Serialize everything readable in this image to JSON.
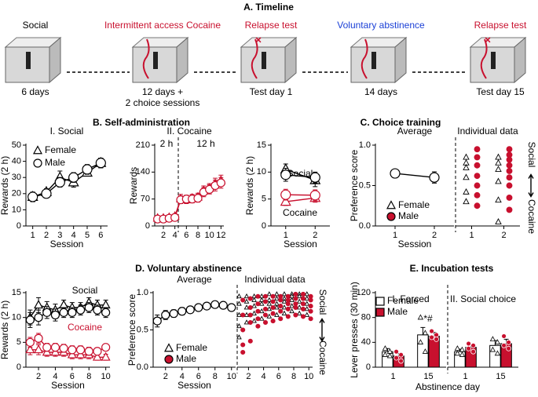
{
  "timeline": {
    "title": "A. Timeline",
    "stages": [
      {
        "label": "Social",
        "color": "#000000",
        "duration": [
          "6 days"
        ]
      },
      {
        "label": "Intermittent access Cocaine",
        "color": "#c8102e",
        "duration": [
          "12 days +",
          "2 choice sessions"
        ]
      },
      {
        "label": "Relapse test",
        "color": "#c8102e",
        "duration": [
          "Test day 1"
        ]
      },
      {
        "label": "Voluntary abstinence",
        "color": "#1a3fd6",
        "duration": [
          "14 days"
        ]
      },
      {
        "label": "Relapse test",
        "color": "#c8102e",
        "duration": [
          "Test day 15"
        ]
      }
    ]
  },
  "panels": [
    {
      "title": "B. Self-administration"
    },
    {
      "title": "C. Choice training"
    },
    {
      "title": "D. Voluntary abstinence"
    },
    {
      "title": "E. Incubation tests",
      "xlabel": "Abstinence day"
    }
  ],
  "chart_data": [
    {
      "type": "line",
      "subtitle": "I. Social",
      "ylabel": "Rewards (2 h)",
      "xlabel": "Session",
      "x": [
        1,
        2,
        3,
        4,
        5,
        6
      ],
      "xlim": [
        0.5,
        6.5
      ],
      "xticks": [
        1,
        2,
        3,
        4,
        5,
        6
      ],
      "ylim": [
        0,
        50
      ],
      "yticks": [
        0,
        10,
        20,
        30,
        40,
        50
      ],
      "legend": [
        {
          "name": "Female",
          "marker": "triangle",
          "fill": "#ffffff"
        },
        {
          "name": "Male",
          "marker": "circle",
          "fill": "#ffffff"
        }
      ],
      "series": [
        {
          "marker": "triangle",
          "color": "#000000",
          "fill": "#ffffff",
          "values": [
            18,
            21,
            30,
            27,
            33,
            39
          ],
          "errors": [
            2,
            2,
            4,
            3,
            2,
            3
          ]
        },
        {
          "marker": "circle",
          "color": "#000000",
          "fill": "#ffffff",
          "values": [
            18,
            20,
            27,
            30,
            35,
            39
          ],
          "errors": [
            3,
            2,
            3,
            3,
            3,
            3
          ]
        }
      ]
    },
    {
      "type": "line",
      "subtitle": "II. Cocaine",
      "ylabel": "Rewards",
      "x": [
        1,
        2,
        3,
        4,
        5,
        6,
        7,
        8,
        9,
        10,
        11,
        12
      ],
      "xlim": [
        0.5,
        12.5
      ],
      "xticks": [
        2,
        4,
        6,
        8,
        10,
        12
      ],
      "ylim": [
        0,
        210
      ],
      "yticks": [
        0,
        70,
        140,
        210
      ],
      "annotations": [
        {
          "text": "2 h",
          "color": "#000000"
        },
        {
          "text": "12 h",
          "color": "#000000"
        }
      ],
      "series": [
        {
          "marker": "triangle",
          "color": "#c8102e",
          "fill": "#ffffff",
          "values": [
            20,
            20,
            22,
            25,
            70,
            68,
            72,
            75,
            92,
            98,
            110,
            118
          ],
          "errors": [
            6,
            6,
            6,
            6,
            12,
            10,
            10,
            10,
            12,
            12,
            14,
            14
          ]
        },
        {
          "marker": "circle",
          "color": "#c8102e",
          "fill": "#ffffff",
          "values": [
            18,
            18,
            20,
            22,
            68,
            70,
            70,
            72,
            88,
            95,
            105,
            112
          ],
          "errors": [
            6,
            6,
            6,
            6,
            10,
            10,
            10,
            10,
            12,
            12,
            14,
            14
          ]
        }
      ]
    },
    {
      "type": "line",
      "ylabel": "Rewards (2 h)",
      "xlabel": "Session",
      "x": [
        1,
        2
      ],
      "xlim": [
        0.5,
        2.5
      ],
      "xticks": [
        1,
        2
      ],
      "ylim": [
        0,
        15
      ],
      "yticks": [
        0,
        5,
        10,
        15
      ],
      "annotations": [
        {
          "text": "Social",
          "color": "#000000"
        },
        {
          "text": "Cocaine",
          "color": "#000000"
        }
      ],
      "series": [
        {
          "marker": "triangle",
          "color": "#000000",
          "fill": "#ffffff",
          "values": [
            10.5,
            8.5
          ],
          "errors": [
            1,
            1.2
          ]
        },
        {
          "marker": "circle",
          "color": "#000000",
          "fill": "#ffffff",
          "values": [
            9.5,
            9
          ],
          "errors": [
            1.2,
            1
          ]
        },
        {
          "marker": "triangle",
          "color": "#c8102e",
          "fill": "#ffffff",
          "values": [
            4.5,
            5.2
          ],
          "errors": [
            0.7,
            0.8
          ]
        },
        {
          "marker": "circle",
          "color": "#c8102e",
          "fill": "#ffffff",
          "values": [
            5.8,
            5.7
          ],
          "errors": [
            1,
            1
          ]
        }
      ]
    },
    {
      "type": "line",
      "subtitle": "Average",
      "ylabel": "Preference score",
      "xlabel": "Session",
      "x": [
        1,
        2
      ],
      "xlim": [
        0.5,
        2.5
      ],
      "xticks": [
        1,
        2
      ],
      "ylim": [
        0,
        1
      ],
      "yticks": [
        {
          "value": 0,
          "label": "0.0"
        },
        0.5,
        {
          "value": 1,
          "label": "1.0"
        }
      ],
      "legend": [
        {
          "name": "Female",
          "marker": "triangle",
          "fill": "#ffffff"
        },
        {
          "name": "Male",
          "marker": "circle",
          "fill": "#c8102e"
        }
      ],
      "series": [
        {
          "marker": "circle",
          "color": "#000000",
          "fill": "#ffffff",
          "values": [
            0.65,
            0.6
          ],
          "errors": [
            0.02,
            0.07
          ]
        }
      ]
    },
    {
      "type": "dot",
      "subtitle": "Individual data",
      "x": [
        1,
        2
      ],
      "xlim": [
        0.5,
        2.5
      ],
      "xticks": [
        1,
        2
      ],
      "ylim": [
        0,
        1
      ],
      "side_labels": [
        "Social",
        "Cocaine"
      ],
      "series": [
        {
          "marker": "triangle",
          "color": "#000000",
          "fill": "#ffffff",
          "values": [
            [
              0.85,
              0.78,
              0.72,
              0.6,
              0.42,
              0.3
            ],
            [
              0.85,
              0.78,
              0.7,
              0.55,
              0.32,
              0.05
            ]
          ]
        },
        {
          "marker": "circle",
          "color": "#c8102e",
          "fill": "#c8102e",
          "values": [
            [
              0.95,
              0.85,
              0.75,
              0.62,
              0.5,
              0.38,
              0.25
            ],
            [
              0.95,
              0.88,
              0.82,
              0.75,
              0.68,
              0.6,
              0.5,
              0.35,
              0.2
            ]
          ]
        }
      ]
    },
    {
      "type": "line",
      "ylabel": "Rewards (2 h)",
      "xlabel": "Session",
      "x": [
        1,
        2,
        3,
        4,
        5,
        6,
        7,
        8,
        9,
        10
      ],
      "xlim": [
        0.5,
        10.5
      ],
      "xticks": [
        2,
        4,
        6,
        8,
        10
      ],
      "ylim": [
        0,
        15
      ],
      "yticks": [
        0,
        5,
        10,
        15
      ],
      "annotations": [
        {
          "text": "Social",
          "color": "#000000"
        },
        {
          "text": "Cocaine",
          "color": "#c8102e"
        }
      ],
      "series": [
        {
          "marker": "triangle",
          "color": "#000000",
          "fill": "#ffffff",
          "values": [
            10,
            12.5,
            12,
            11.5,
            12.5,
            12,
            12,
            13,
            12.5,
            12.5
          ],
          "errors": [
            1.5,
            1.5,
            1.2,
            1.2,
            1,
            1,
            1,
            1,
            1,
            1
          ]
        },
        {
          "marker": "circle",
          "color": "#000000",
          "fill": "#ffffff",
          "values": [
            9.5,
            10,
            11,
            10.5,
            11,
            11,
            11.5,
            12,
            11.5,
            11
          ],
          "errors": [
            1.5,
            1.5,
            1.2,
            1.2,
            1,
            1,
            1,
            1,
            1,
            1
          ]
        },
        {
          "marker": "triangle",
          "color": "#c8102e",
          "fill": "#ffffff",
          "values": [
            3.5,
            3.5,
            3,
            3,
            3,
            2.5,
            2.5,
            2.5,
            2,
            2
          ],
          "errors": [
            1,
            1,
            0.8,
            0.8,
            0.8,
            0.8,
            0.8,
            0.8,
            0.6,
            0.6
          ]
        },
        {
          "marker": "circle",
          "color": "#c8102e",
          "fill": "#ffffff",
          "values": [
            5,
            5.8,
            4,
            4,
            3.8,
            3.5,
            3.5,
            3.2,
            3.2,
            4
          ],
          "errors": [
            1,
            1,
            0.8,
            0.8,
            0.8,
            0.8,
            0.8,
            0.8,
            0.6,
            0.6
          ]
        }
      ]
    },
    {
      "type": "line",
      "subtitle": "Average",
      "ylabel": "Preference score",
      "xlabel": "Session",
      "x": [
        1,
        2,
        3,
        4,
        5,
        6,
        7,
        8,
        9,
        10
      ],
      "xlim": [
        0.5,
        10.5
      ],
      "xticks": [
        2,
        4,
        6,
        8,
        10
      ],
      "ylim": [
        0,
        1
      ],
      "yticks": [
        {
          "value": 0,
          "label": "0.0"
        },
        0.5,
        {
          "value": 1,
          "label": "1.0"
        }
      ],
      "legend": [
        {
          "name": "Female",
          "marker": "triangle",
          "fill": "#ffffff"
        },
        {
          "name": "Male",
          "marker": "circle",
          "fill": "#c8102e"
        }
      ],
      "series": [
        {
          "marker": "circle",
          "color": "#000000",
          "fill": "#ffffff",
          "values": [
            0.62,
            0.7,
            0.72,
            0.75,
            0.77,
            0.8,
            0.82,
            0.84,
            0.83,
            0.8
          ],
          "errors": [
            0.08,
            0.06,
            0.05,
            0.05,
            0.04,
            0.04,
            0.04,
            0.03,
            0.03,
            0.03
          ]
        }
      ]
    },
    {
      "type": "dot",
      "subtitle": "Individual data",
      "x": [
        1,
        2,
        3,
        4,
        5,
        6,
        7,
        8,
        9,
        10
      ],
      "xlim": [
        0.5,
        10.5
      ],
      "xticks": [
        2,
        4,
        6,
        8,
        10
      ],
      "ylim": [
        0,
        1
      ],
      "side_labels": [
        "Social",
        "Cocaine"
      ],
      "series": [
        {
          "marker": "triangle",
          "color": "#000000",
          "fill": "#ffffff",
          "values": [
            [
              0.95,
              0.85,
              0.7,
              0.55,
              0.4
            ],
            [
              0.95,
              0.88,
              0.8,
              0.7,
              0.6
            ],
            [
              0.95,
              0.9,
              0.82,
              0.72,
              0.62
            ],
            [
              0.95,
              0.9,
              0.85,
              0.75,
              0.65
            ],
            [
              0.98,
              0.9,
              0.85,
              0.78,
              0.68
            ],
            [
              0.98,
              0.92,
              0.85,
              0.8,
              0.7
            ],
            [
              0.98,
              0.92,
              0.88,
              0.8,
              0.72
            ],
            [
              0.98,
              0.95,
              0.9,
              0.82,
              0.75
            ],
            [
              0.98,
              0.95,
              0.88,
              0.8,
              0.72
            ],
            [
              0.98,
              0.92,
              0.85,
              0.78,
              0.7
            ]
          ]
        },
        {
          "marker": "circle",
          "color": "#c8102e",
          "fill": "#c8102e",
          "values": [
            [
              0.9,
              0.7,
              0.5,
              0.3,
              0.2
            ],
            [
              0.92,
              0.8,
              0.7,
              0.6,
              0.35
            ],
            [
              0.95,
              0.85,
              0.75,
              0.65,
              0.55
            ],
            [
              0.95,
              0.88,
              0.78,
              0.7,
              0.6
            ],
            [
              0.95,
              0.88,
              0.8,
              0.72,
              0.62
            ],
            [
              0.95,
              0.9,
              0.82,
              0.75,
              0.65
            ],
            [
              0.95,
              0.9,
              0.85,
              0.78,
              0.68
            ],
            [
              0.98,
              0.92,
              0.85,
              0.8,
              0.7
            ],
            [
              0.98,
              0.92,
              0.85,
              0.78,
              0.68
            ],
            [
              0.95,
              0.9,
              0.82,
              0.75,
              0.65
            ]
          ]
        }
      ]
    },
    {
      "type": "bar",
      "subtitle": "I. Forced",
      "ylabel": "Lever presses (30 min)",
      "categories": [
        "1",
        "15"
      ],
      "ylim": [
        0,
        120
      ],
      "yticks": [
        0,
        40,
        80,
        120
      ],
      "legend": [
        {
          "name": "Female",
          "marker": "square",
          "fill": "#ffffff"
        },
        {
          "name": "Male",
          "marker": "square",
          "fill": "#c8102e"
        }
      ],
      "annotations": [
        {
          "text": "*#",
          "color": "#000000"
        }
      ],
      "series": [
        {
          "marker": "triangle",
          "color": "#000000",
          "fill": "#ffffff",
          "values": [
            25,
            52
          ],
          "errors": [
            5,
            12
          ],
          "points": [
            [
              30,
              25,
              20,
              18
            ],
            [
              80,
              55,
              40,
              25
            ]
          ]
        },
        {
          "marker": "circle",
          "color": "#000000",
          "fill": "#c8102e",
          "values": [
            18,
            50
          ],
          "errors": [
            4,
            6
          ],
          "points": [
            [
              25,
              20,
              15,
              10
            ],
            [
              58,
              52,
              48,
              45
            ]
          ]
        }
      ]
    },
    {
      "type": "bar",
      "subtitle": "II. Social choice",
      "categories": [
        "1",
        "15"
      ],
      "ylim": [
        0,
        120
      ],
      "series": [
        {
          "marker": "triangle",
          "color": "#000000",
          "fill": "#ffffff",
          "values": [
            25,
            35
          ],
          "errors": [
            4,
            8
          ],
          "points": [
            [
              30,
              28,
              22,
              20
            ],
            [
              45,
              40,
              28,
              22
            ]
          ]
        },
        {
          "marker": "circle",
          "color": "#000000",
          "fill": "#c8102e",
          "values": [
            32,
            38
          ],
          "errors": [
            5,
            7
          ],
          "points": [
            [
              38,
              35,
              30,
              25
            ],
            [
              50,
              40,
              35,
              30
            ]
          ]
        }
      ]
    }
  ]
}
